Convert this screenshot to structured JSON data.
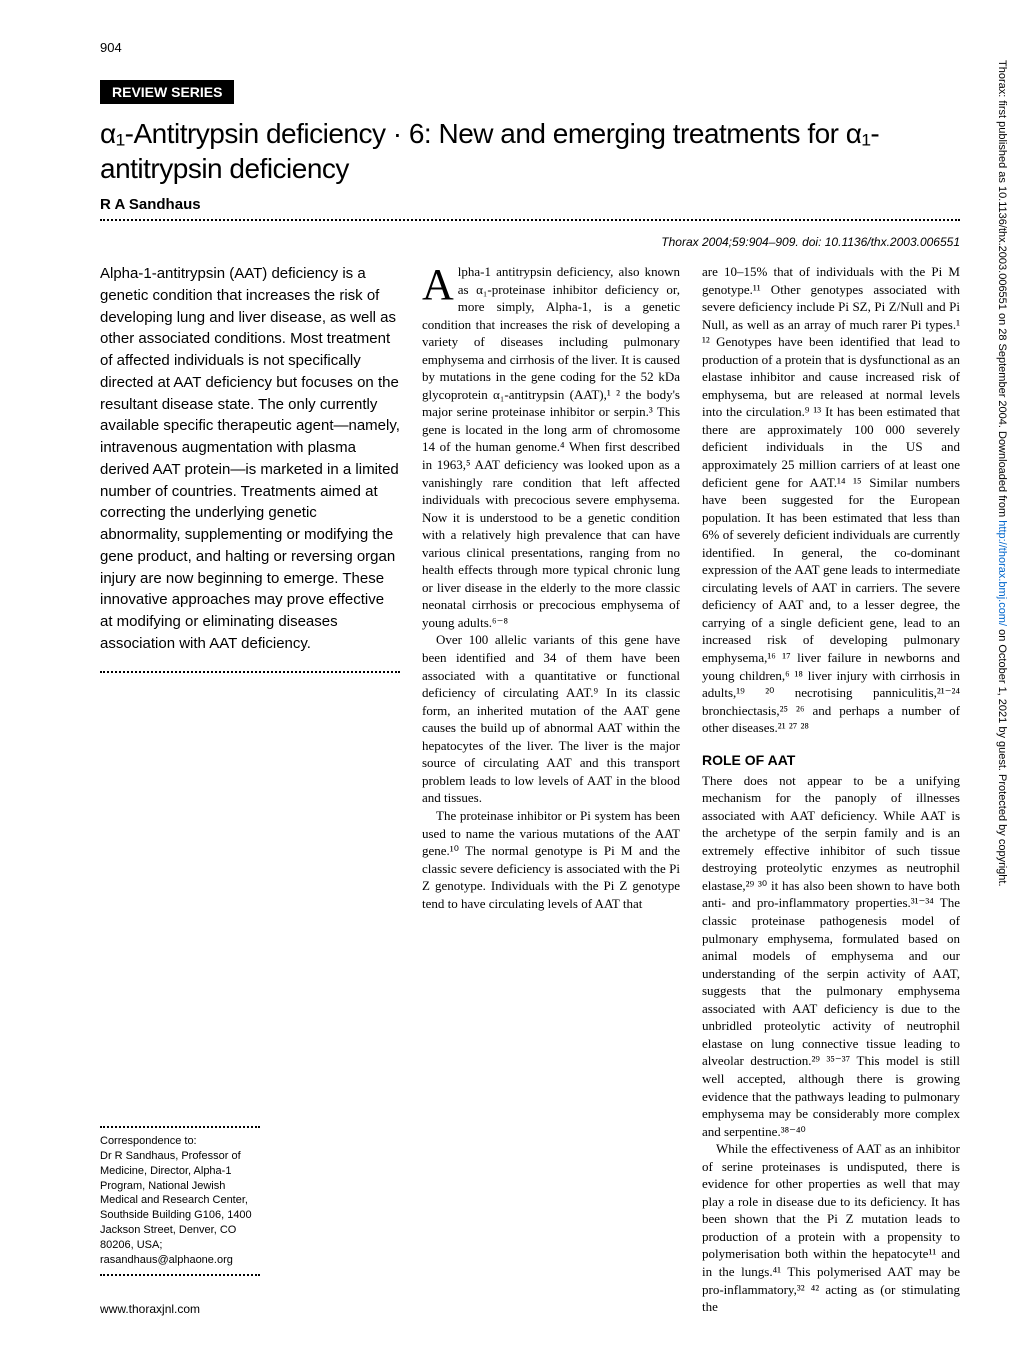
{
  "page_number": "904",
  "review_label": "REVIEW SERIES",
  "title": "α₁-Antitrypsin deficiency · 6: New and emerging treatments for α₁-antitrypsin deficiency",
  "author": "R A Sandhaus",
  "citation": "Thorax 2004;59:904–909. doi: 10.1136/thx.2003.006551",
  "abstract": "Alpha-1-antitrypsin (AAT) deficiency is a genetic condition that increases the risk of developing lung and liver disease, as well as other associated conditions. Most treatment of affected individuals is not specifically directed at AAT deficiency but focuses on the resultant disease state. The only currently available specific therapeutic agent—namely, intravenous augmentation with plasma derived AAT protein—is marketed in a limited number of countries. Treatments aimed at correcting the underlying genetic abnormality, supplementing or modifying the gene product, and halting or reversing organ injury are now beginning to emerge. These innovative approaches may prove effective at modifying or eliminating diseases association with AAT deficiency.",
  "body_col1_p1_dropcap": "A",
  "body_col1_p1": "lpha-1 antitrypsin deficiency, also known as α₁-proteinase inhibitor deficiency or, more simply, Alpha-1, is a genetic condition that increases the risk of developing a variety of diseases including pulmonary emphysema and cirrhosis of the liver. It is caused by mutations in the gene coding for the 52 kDa glycoprotein α₁-antitrypsin (AAT),¹ ² the body's major serine proteinase inhibitor or serpin.³ This gene is located in the long arm of chromosome 14 of the human genome.⁴ When first described in 1963,⁵ AAT deficiency was looked upon as a vanishingly rare condition that left affected individuals with precocious severe emphysema. Now it is understood to be a genetic condition with a relatively high prevalence that can have various clinical presentations, ranging from no health effects through more typical chronic lung or liver disease in the elderly to the more classic neonatal cirrhosis or precocious emphysema of young adults.⁶⁻⁸",
  "body_col1_p2": "Over 100 allelic variants of this gene have been identified and 34 of them have been associated with a quantitative or functional deficiency of circulating AAT.⁹ In its classic form, an inherited mutation of the AAT gene causes the build up of abnormal AAT within the hepatocytes of the liver. The liver is the major source of circulating AAT and this transport problem leads to low levels of AAT in the blood and tissues.",
  "body_col1_p3": "The proteinase inhibitor or Pi system has been used to name the various mutations of the AAT gene.¹⁰ The normal genotype is Pi M and the classic severe deficiency is associated with the Pi Z genotype. Individuals with the Pi Z genotype tend to have circulating levels of AAT that",
  "body_col2_p1": "are 10–15% that of individuals with the Pi M genotype.¹¹ Other genotypes associated with severe deficiency include Pi SZ, Pi Z/Null and Pi Null, as well as an array of much rarer Pi types.¹ ¹² Genotypes have been identified that lead to production of a protein that is dysfunctional as an elastase inhibitor and cause increased risk of emphysema, but are released at normal levels into the circulation.⁹ ¹³ It has been estimated that there are approximately 100 000 severely deficient individuals in the US and approximately 25 million carriers of at least one deficient gene for AAT.¹⁴ ¹⁵ Similar numbers have been suggested for the European population. It has been estimated that less than 6% of severely deficient individuals are currently identified. In general, the co-dominant expression of the AAT gene leads to intermediate circulating levels of AAT in carriers. The severe deficiency of AAT and, to a lesser degree, the carrying of a single deficient gene, lead to an increased risk of developing pulmonary emphysema,¹⁶ ¹⁷ liver failure in newborns and young children,⁶ ¹⁸ liver injury with cirrhosis in adults,¹⁹ ²⁰ necrotising panniculitis,²¹⁻²⁴ bronchiectasis,²⁵ ²⁶ and perhaps a number of other diseases.²¹ ²⁷ ²⁸",
  "section_head": "ROLE OF AAT",
  "body_col2_p2": "There does not appear to be a unifying mechanism for the panoply of illnesses associated with AAT deficiency. While AAT is the archetype of the serpin family and is an extremely effective inhibitor of such tissue destroying proteolytic enzymes as neutrophil elastase,²⁹ ³⁰ it has also been shown to have both anti- and pro-inflammatory properties.³¹⁻³⁴ The classic proteinase pathogenesis model of pulmonary emphysema, formulated based on animal models of emphysema and our understanding of the serpin activity of AAT, suggests that the pulmonary emphysema associated with AAT deficiency is due to the unbridled proteolytic activity of neutrophil elastase on lung connective tissue leading to alveolar destruction.²⁹ ³⁵⁻³⁷ This model is still well accepted, although there is growing evidence that the pathways leading to pulmonary emphysema may be considerably more complex and serpentine.³⁸⁻⁴⁰",
  "body_col2_p3": "While the effectiveness of AAT as an inhibitor of serine proteinases is undisputed, there is evidence for other properties as well that may play a role in disease due to its deficiency. It has been shown that the Pi Z mutation leads to production of a protein with a propensity to polymerisation both within the hepatocyte¹¹ and in the lungs.⁴¹ This polymerised AAT may be pro-inflammatory,³² ⁴² acting as (or stimulating the",
  "correspondence_label": "Correspondence to:",
  "correspondence_text": "Dr R Sandhaus, Professor of Medicine, Director, Alpha-1 Program, National Jewish Medical and Research Center, Southside Building G106, 1400 Jackson Street, Denver, CO 80206, USA; rasandhaus@alphaone.org",
  "footer": "www.thoraxjnl.com",
  "side_text_1": "Thorax: first published as 10.1136/thx.2003.006551 on 28 September 2004. Downloaded from ",
  "side_link": "http://thorax.bmj.com/",
  "side_text_2": " on October 1, 2021 by guest. Protected by copyright."
}
